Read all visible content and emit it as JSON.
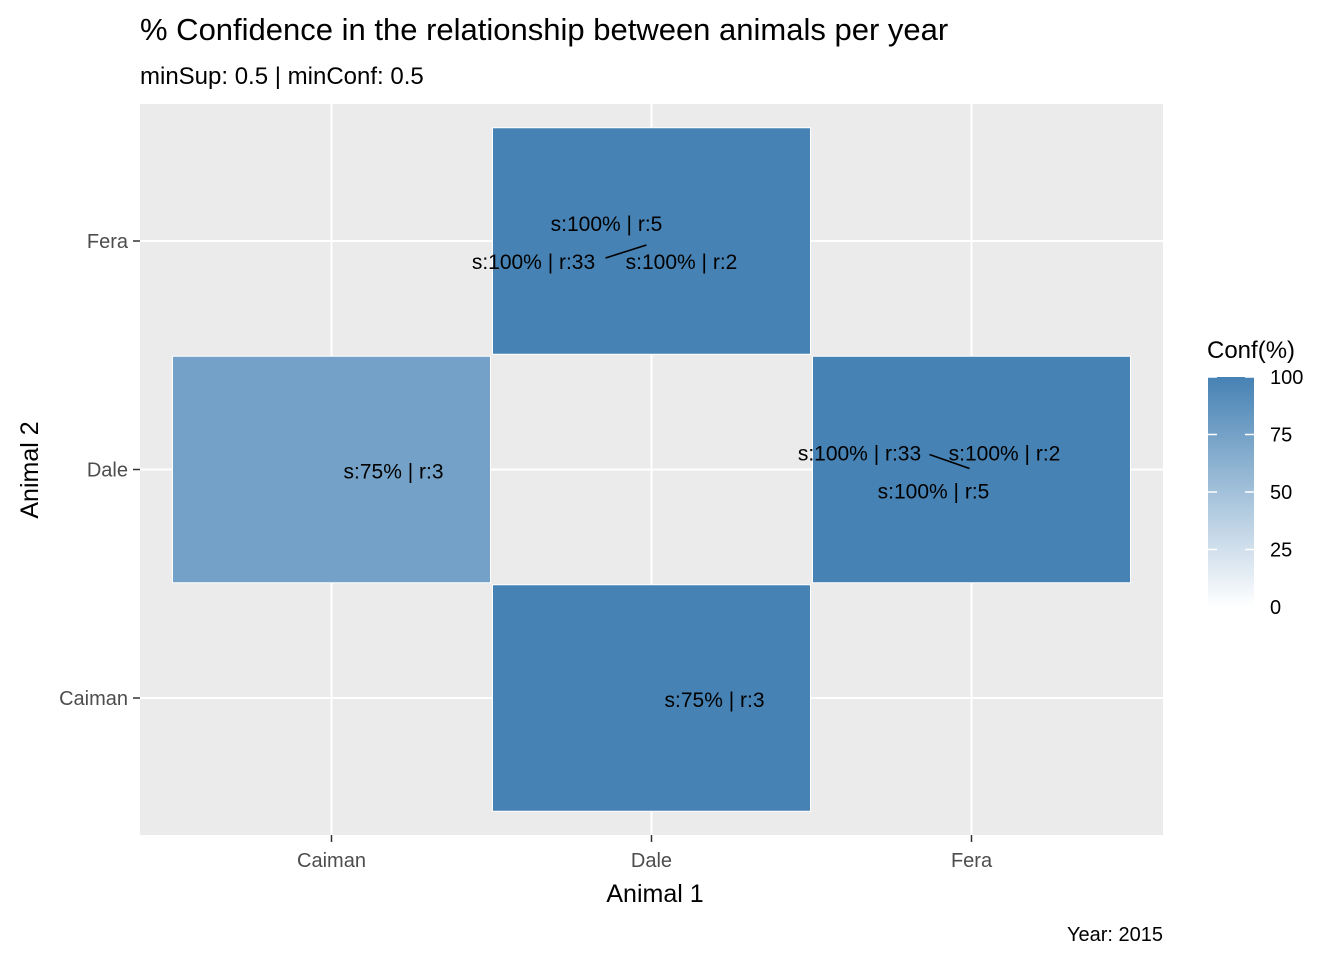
{
  "chart_data": {
    "type": "heatmap",
    "title": "% Confidence in the relationship between animals per year",
    "subtitle": "minSup: 0.5 | minConf: 0.5",
    "caption": "Year: 2015",
    "xlabel": "Animal 1",
    "ylabel": "Animal 2",
    "x_categories": [
      "Caiman",
      "Dale",
      "Fera"
    ],
    "y_categories": [
      "Caiman",
      "Dale",
      "Fera"
    ],
    "grid": true,
    "legend": {
      "title": "Conf(%)",
      "position": "right",
      "range": [
        0,
        100
      ],
      "breaks": [
        0,
        25,
        50,
        75,
        100
      ],
      "low_color": "#ffffff",
      "high_color": "#4682b4"
    },
    "cells": [
      {
        "x": "Dale",
        "y": "Fera",
        "conf": 100,
        "labels": [
          "s:100% | r:5",
          "s:100% | r:33",
          "s:100% | r:2"
        ]
      },
      {
        "x": "Caiman",
        "y": "Dale",
        "conf": 75,
        "labels": [
          "s:75% | r:3"
        ]
      },
      {
        "x": "Fera",
        "y": "Dale",
        "conf": 100,
        "labels": [
          "s:100% | r:33",
          "s:100% | r:2",
          "s:100% | r:5"
        ]
      },
      {
        "x": "Dale",
        "y": "Caiman",
        "conf": 100,
        "labels": [
          "s:75% | r:3"
        ]
      }
    ]
  }
}
